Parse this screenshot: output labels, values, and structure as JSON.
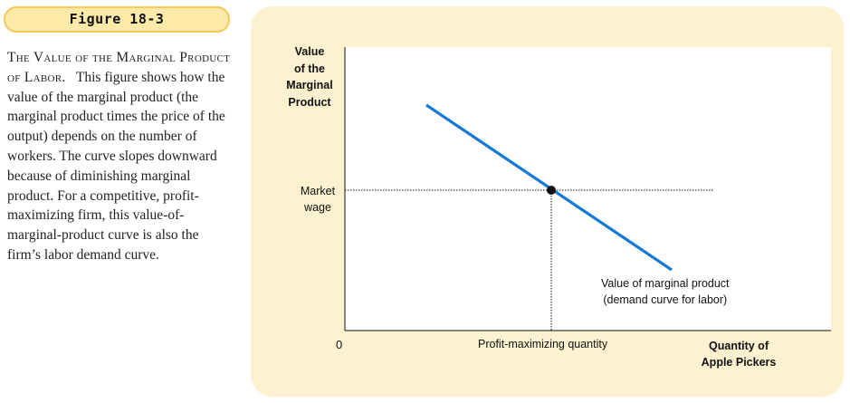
{
  "figure": {
    "label": "Figure 18-3",
    "caption_title": "The Value of the Marginal Product of Labor.",
    "caption_body": "This figure shows how the value of the marginal product (the marginal product times the price of the output) depends on the number of workers. The curve slopes downward because of diminishing marginal product. For a competitive, profit-maximizing firm, this value-of-marginal-product curve is also the firm’s labor demand curve."
  },
  "diagram": {
    "y_axis_title": "Value\nof the\nMarginal\nProduct",
    "x_axis_title": "Quantity of\nApple Pickers",
    "origin_label": "0",
    "market_wage_label": "Market\nwage",
    "profit_max_label": "Profit-maximizing quantity",
    "curve_label": "Value of marginal product\n(demand curve for labor)",
    "colors": {
      "panel": "#fdf1cf",
      "curve": "#1679d6",
      "guide": "#111111",
      "figure_tab": "#fde9a8"
    }
  }
}
